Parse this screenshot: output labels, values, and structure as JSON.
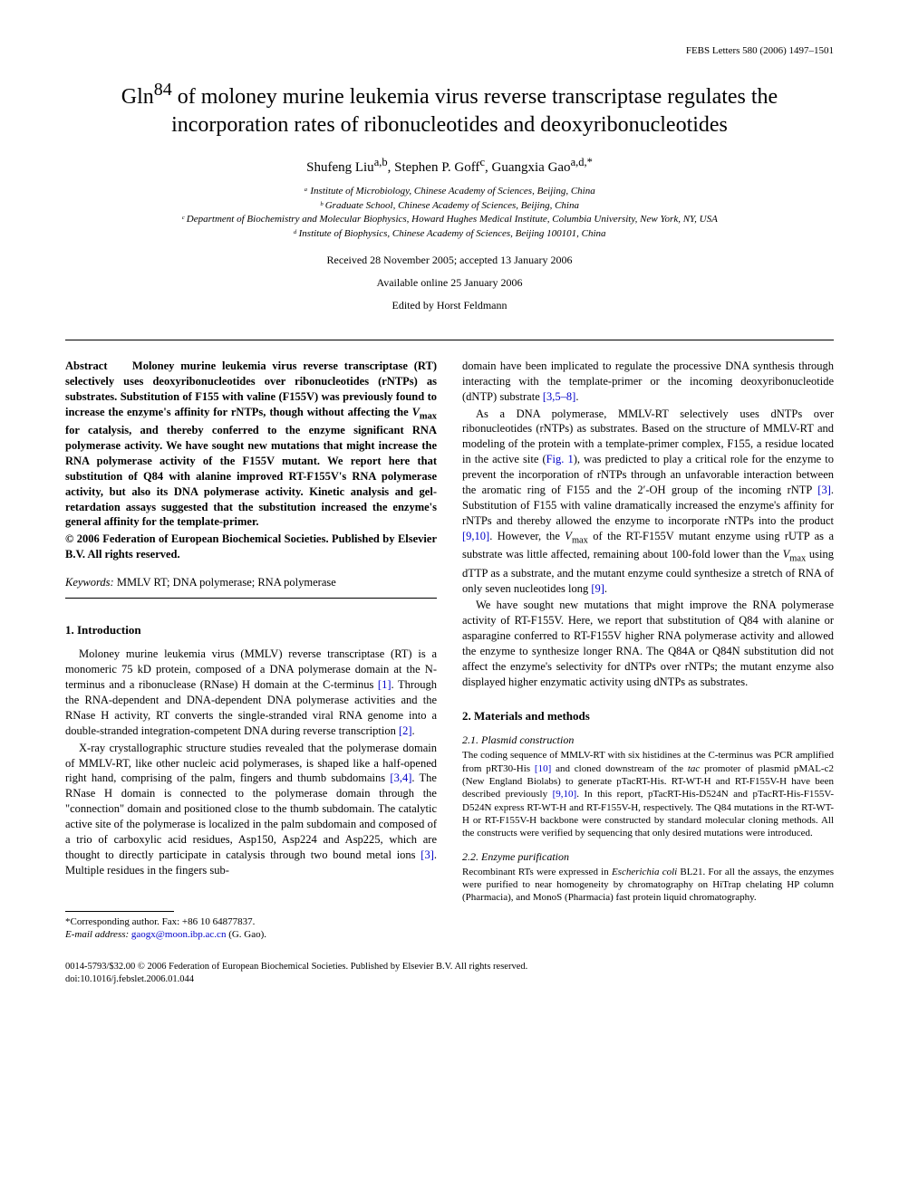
{
  "journal_header": "FEBS Letters 580 (2006) 1497–1501",
  "title": "Gln⁸⁴ of moloney murine leukemia virus reverse transcriptase regulates the incorporation rates of ribonucleotides and deoxyribonucleotides",
  "authors_html": "Shufeng Liu<sup>a,b</sup>, Stephen P. Goff<sup>c</sup>, Guangxia Gao<sup>a,d,*</sup>",
  "affiliations": [
    "ᵃ Institute of Microbiology, Chinese Academy of Sciences, Beijing, China",
    "ᵇ Graduate School, Chinese Academy of Sciences, Beijing, China",
    "ᶜ Department of Biochemistry and Molecular Biophysics, Howard Hughes Medical Institute, Columbia University, New York, NY, USA",
    "ᵈ Institute of Biophysics, Chinese Academy of Sciences, Beijing 100101, China"
  ],
  "received": "Received 28 November 2005; accepted 13 January 2006",
  "available": "Available online 25 January 2006",
  "editor": "Edited by Horst Feldmann",
  "abstract_label": "Abstract",
  "abstract": "Moloney murine leukemia virus reverse transcriptase (RT) selectively uses deoxyribonucleotides over ribonucleotides (rNTPs) as substrates. Substitution of F155 with valine (F155V) was previously found to increase the enzyme's affinity for rNTPs, though without affecting the Vmax for catalysis, and thereby conferred to the enzyme significant RNA polymerase activity. We have sought new mutations that might increase the RNA polymerase activity of the F155V mutant. We report here that substitution of Q84 with alanine improved RT-F155V's RNA polymerase activity, but also its DNA polymerase activity. Kinetic analysis and gel-retardation assays suggested that the substitution increased the enzyme's general affinity for the template-primer.",
  "copyright": "© 2006 Federation of European Biochemical Societies. Published by Elsevier B.V. All rights reserved.",
  "keywords_label": "Keywords:",
  "keywords": "MMLV RT; DNA polymerase; RNA polymerase",
  "sections": {
    "intro_heading": "1. Introduction",
    "intro_p1": "Moloney murine leukemia virus (MMLV) reverse transcriptase (RT) is a monomeric 75 kD protein, composed of a DNA polymerase domain at the N-terminus and a ribonuclease (RNase) H domain at the C-terminus [1]. Through the RNA-dependent and DNA-dependent DNA polymerase activities and the RNase H activity, RT converts the single-stranded viral RNA genome into a double-stranded integration-competent DNA during reverse transcription [2].",
    "intro_p2": "X-ray crystallographic structure studies revealed that the polymerase domain of MMLV-RT, like other nucleic acid polymerases, is shaped like a half-opened right hand, comprising of the palm, fingers and thumb subdomains [3,4]. The RNase H domain is connected to the polymerase domain through the \"connection\" domain and positioned close to the thumb subdomain. The catalytic active site of the polymerase is localized in the palm subdomain and composed of a trio of carboxylic acid residues, Asp150, Asp224 and Asp225, which are thought to directly participate in catalysis through two bound metal ions [3]. Multiple residues in the fingers sub-",
    "col2_p1": "domain have been implicated to regulate the processive DNA synthesis through interacting with the template-primer or the incoming deoxyribonucleotide (dNTP) substrate [3,5–8].",
    "col2_p2": "As a DNA polymerase, MMLV-RT selectively uses dNTPs over ribonucleotides (rNTPs) as substrates. Based on the structure of MMLV-RT and modeling of the protein with a template-primer complex, F155, a residue located in the active site (Fig. 1), was predicted to play a critical role for the enzyme to prevent the incorporation of rNTPs through an unfavorable interaction between the aromatic ring of F155 and the 2′-OH group of the incoming rNTP [3]. Substitution of F155 with valine dramatically increased the enzyme's affinity for rNTPs and thereby allowed the enzyme to incorporate rNTPs into the product [9,10]. However, the Vmax of the RT-F155V mutant enzyme using rUTP as a substrate was little affected, remaining about 100-fold lower than the Vmax using dTTP as a substrate, and the mutant enzyme could synthesize a stretch of RNA of only seven nucleotides long [9].",
    "col2_p3": "We have sought new mutations that might improve the RNA polymerase activity of RT-F155V. Here, we report that substitution of Q84 with alanine or asparagine conferred to RT-F155V higher RNA polymerase activity and allowed the enzyme to synthesize longer RNA. The Q84A or Q84N substitution did not affect the enzyme's selectivity for dNTPs over rNTPs; the mutant enzyme also displayed higher enzymatic activity using dNTPs as substrates.",
    "methods_heading": "2. Materials and methods",
    "sub_2_1_heading": "2.1. Plasmid construction",
    "sub_2_1_body": "The coding sequence of MMLV-RT with six histidines at the C-terminus was PCR amplified from pRT30-His [10] and cloned downstream of the tac promoter of plasmid pMAL-c2 (New England Biolabs) to generate pTacRT-His. RT-WT-H and RT-F155V-H have been described previously [9,10]. In this report, pTacRT-His-D524N and pTacRT-His-F155V-D524N express RT-WT-H and RT-F155V-H, respectively. The Q84 mutations in the RT-WT-H or RT-F155V-H backbone were constructed by standard molecular cloning methods. All the constructs were verified by sequencing that only desired mutations were introduced.",
    "sub_2_2_heading": "2.2. Enzyme purification",
    "sub_2_2_body": "Recombinant RTs were expressed in Escherichia coli BL21. For all the assays, the enzymes were purified to near homogeneity by chromatography on HiTrap chelating HP column (Pharmacia), and MonoS (Pharmacia) fast protein liquid chromatography."
  },
  "footnote_corr": "*Corresponding author. Fax: +86 10 64877837.",
  "footnote_email_label": "E-mail address:",
  "footnote_email": "gaogx@moon.ibp.ac.cn",
  "footnote_email_tail": "(G. Gao).",
  "bottom_issn": "0014-5793/$32.00 © 2006 Federation of European Biochemical Societies. Published by Elsevier B.V. All rights reserved.",
  "bottom_doi": "doi:10.1016/j.febslet.2006.01.044",
  "colors": {
    "text": "#000000",
    "link": "#0000c8",
    "bg": "#ffffff"
  }
}
